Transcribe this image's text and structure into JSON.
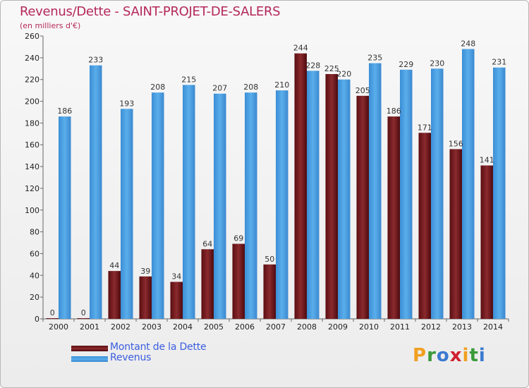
{
  "header": {
    "title": "Revenus/Dette - SAINT-PROJET-DE-SALERS",
    "subtitle": "(en milliers d'€)"
  },
  "colors": {
    "dette": "#7a1e22",
    "revenus": "#4a9de0",
    "title": "#b5285a",
    "legend_text": "#3a5de0"
  },
  "chart_data": {
    "type": "bar",
    "title": "Revenus/Dette - SAINT-PROJET-DE-SALERS",
    "ylabel": "(en milliers d'€)",
    "xlabel": "",
    "ylim": [
      0,
      260
    ],
    "yticks": [
      0,
      20,
      40,
      60,
      80,
      100,
      120,
      140,
      160,
      180,
      200,
      220,
      240,
      260
    ],
    "grid": false,
    "legend_position": "bottom-left",
    "categories": [
      "2000",
      "2001",
      "2002",
      "2003",
      "2004",
      "2005",
      "2006",
      "2007",
      "2008",
      "2009",
      "2010",
      "2011",
      "2012",
      "2013",
      "2014"
    ],
    "series": [
      {
        "name": "Montant de la Dette",
        "values": [
          0,
          0,
          44,
          39,
          34,
          64,
          69,
          50,
          244,
          225,
          205,
          186,
          171,
          156,
          141
        ]
      },
      {
        "name": "Revenus",
        "values": [
          186,
          233,
          193,
          208,
          215,
          207,
          208,
          210,
          228,
          220,
          235,
          229,
          230,
          248,
          231
        ]
      }
    ]
  },
  "legend": {
    "items": [
      "Montant de la Dette",
      "Revenus"
    ]
  },
  "logo": {
    "letters": [
      "P",
      "r",
      "o",
      "x",
      "i",
      "t",
      "i"
    ],
    "colors": [
      "#f0a020",
      "#3a9a3a",
      "#3a7ad0",
      "#d02030",
      "#f0a020",
      "#3a9a3a",
      "#3a7ad0"
    ]
  }
}
